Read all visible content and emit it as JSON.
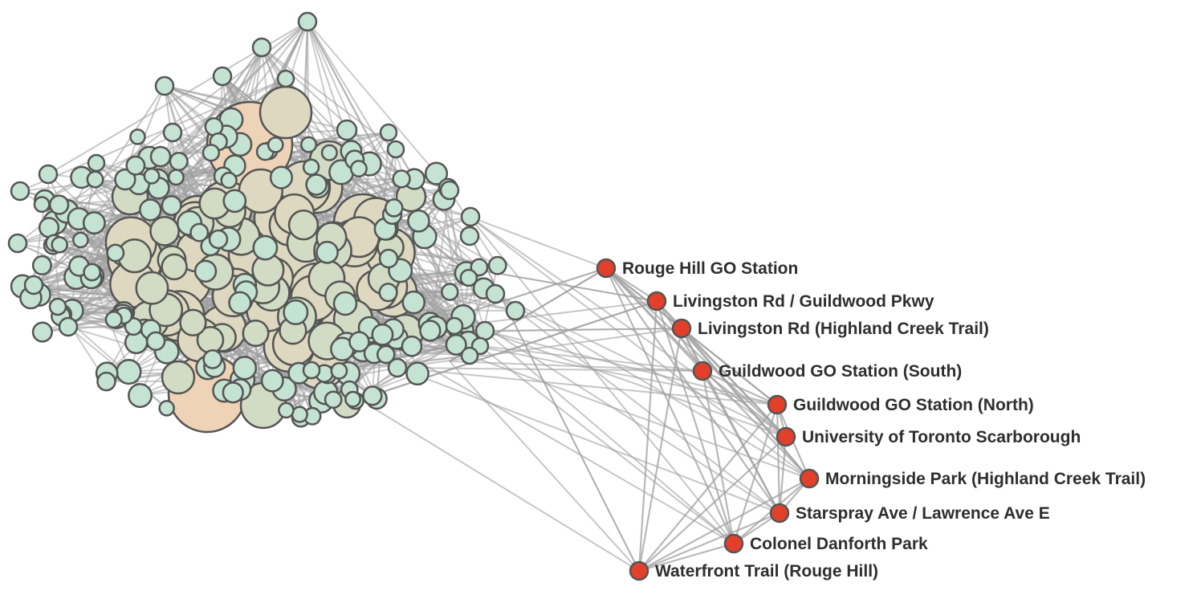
{
  "colors": {
    "background": "#ffffff",
    "edge": "#a0a0a0",
    "node_stroke": "#555555",
    "cluster_small": "#c4e3d2",
    "cluster_mid": "#d2dcc4",
    "cluster_large": "#ddd8bf",
    "cluster_hub": "#efd3b6",
    "highlight_node": "#e2402a",
    "label_text": "#2e2e2e"
  },
  "highlighted_nodes": [
    {
      "id": "rouge-hill-go",
      "label": "Rouge Hill GO Station"
    },
    {
      "id": "livingston-guildwood",
      "label": "Livingston Rd / Guildwood Pkwy"
    },
    {
      "id": "livingston-highland",
      "label": "Livingston Rd (Highland Creek Trail)"
    },
    {
      "id": "guildwood-go-south",
      "label": "Guildwood GO Station (South)"
    },
    {
      "id": "guildwood-go-north",
      "label": "Guildwood GO Station (North)"
    },
    {
      "id": "uoft-scarborough",
      "label": "University of Toronto Scarborough"
    },
    {
      "id": "morningside-park",
      "label": "Morningside Park (Highland Creek Trail)"
    },
    {
      "id": "starspray-lawrence",
      "label": "Starspray Ave / Lawrence Ave E"
    },
    {
      "id": "colonel-danforth",
      "label": "Colonel Danforth Park"
    },
    {
      "id": "waterfront-trail",
      "label": "Waterfront Trail (Rouge Hill)"
    }
  ]
}
